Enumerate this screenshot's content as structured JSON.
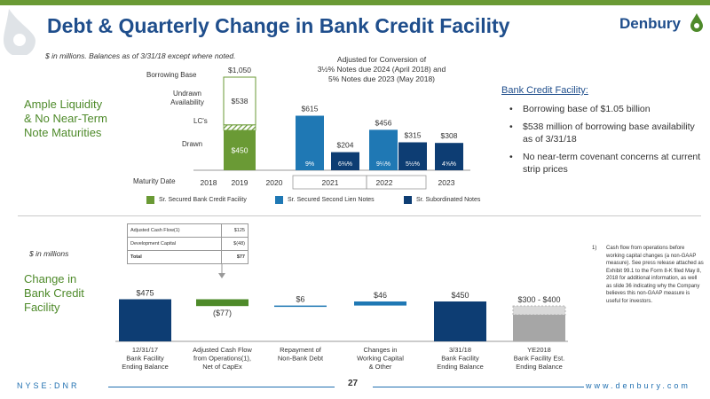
{
  "header": {
    "title": "Debt & Quarterly Change in Bank Credit Facility",
    "brand": "Denbury"
  },
  "top_section": {
    "note": "$ in millions.  Balances as of 3/31/18 except where noted.",
    "side_heading": [
      "Ample Liquidity",
      "& No Near-Term",
      "Note Maturities"
    ],
    "annotation": [
      "Adjusted for Conversion of",
      "3½% Notes due 2024 (April 2018) and",
      "5% Notes due 2023 (May 2018)"
    ],
    "row_labels": [
      "Borrowing Base",
      "Undrawn Availability",
      "LC's",
      "Drawn"
    ],
    "maturity_label": "Maturity Date",
    "bank_credit_facility": {
      "heading": "Bank Credit Facility:",
      "bullets": [
        "Borrowing base of $1.05 billion",
        "$538 million of borrowing base availability as of 3/31/18",
        "No near-term covenant concerns at current strip prices"
      ]
    },
    "legend": [
      {
        "label": "Sr. Secured Bank Credit Facility",
        "color": "#6a9a35"
      },
      {
        "label": "Sr. Secured Second Lien Notes",
        "color": "#1f78b4"
      },
      {
        "label": "Sr. Subordinated Notes",
        "color": "#0d3d73"
      }
    ]
  },
  "bottom_section": {
    "note": "$ in millions",
    "side_heading": [
      "Change in",
      "Bank Credit",
      "Facility"
    ],
    "table": [
      {
        "label": "Adjusted Cash Flow(1)",
        "value": "$125"
      },
      {
        "label": "Development Capital",
        "value": "$(48)"
      },
      {
        "label": "Total",
        "value": "$77"
      }
    ],
    "footnote_num": "1)",
    "footnote": "Cash flow from operations before working capital changes (a non-GAAP measure). See press release attached as Exhibit 99.1 to the Form 8-K filed May 8, 2018 for additional information, as well as slide 36 indicating why the Company believes this non-GAAP measure is useful for investors."
  },
  "footer": {
    "left": "NYSE:DNR",
    "page": "27",
    "right": "www.denbury.com"
  },
  "chart_data": [
    {
      "type": "bar",
      "stacked": true,
      "title": "",
      "x_axis_label": "Maturity Date",
      "years": [
        "2018",
        "2019",
        "2020",
        "2021",
        "2022",
        "2023"
      ],
      "groups": [
        {
          "label": "2021",
          "years_spanned": [
            "2021"
          ]
        },
        {
          "label": "2022",
          "years_spanned": [
            "2022"
          ]
        }
      ],
      "bank_credit_facility_2019": {
        "borrowing_base": 1050,
        "borrowing_base_label": "$1,050",
        "undrawn_availability": 538,
        "undrawn_label": "$538",
        "lcs": 62,
        "drawn": 450,
        "drawn_label": "$450"
      },
      "notes": [
        {
          "year": "2021",
          "series": "Sr. Secured Second Lien Notes",
          "value": 615,
          "label": "$615",
          "rate": "9%"
        },
        {
          "year": "2021",
          "series": "Sr. Subordinated Notes",
          "value": 204,
          "label": "$204",
          "rate": "6⅜%"
        },
        {
          "year": "2022",
          "series": "Sr. Secured Second Lien Notes",
          "value": 456,
          "label": "$456",
          "rate": "9¼%"
        },
        {
          "year": "2022",
          "series": "Sr. Subordinated Notes",
          "value": 315,
          "label": "$315",
          "rate": "5½%"
        },
        {
          "year": "2023",
          "series": "Sr. Subordinated Notes",
          "value": 308,
          "label": "$308",
          "rate": "4⅝%"
        }
      ]
    },
    {
      "type": "bar",
      "subtype": "waterfall",
      "title": "",
      "units": "$ in millions",
      "categories": [
        [
          "12/31/17",
          "Bank Facility",
          "Ending Balance"
        ],
        [
          "Adjusted Cash Flow",
          "from Operations(1),",
          "Net of CapEx"
        ],
        [
          "Repayment of",
          "Non-Bank Debt"
        ],
        [
          "Changes in",
          "Working Capital",
          "& Other"
        ],
        [
          "3/31/18",
          "Bank Facility",
          "Ending Balance"
        ],
        [
          "YE2018",
          "Bank Facility Est.",
          "Ending Balance"
        ]
      ],
      "steps": [
        {
          "kind": "total",
          "value": 475,
          "label": "$475",
          "color": "#0d3d73"
        },
        {
          "kind": "delta",
          "value": -77,
          "label": "($77)",
          "color": "#4e8a2a"
        },
        {
          "kind": "delta",
          "value": 6,
          "label": "$6",
          "color": "#1f78b4"
        },
        {
          "kind": "delta",
          "value": 46,
          "label": "$46",
          "color": "#1f78b4"
        },
        {
          "kind": "total",
          "value": 450,
          "label": "$450",
          "color": "#0d3d73"
        },
        {
          "kind": "range",
          "low": 300,
          "high": 400,
          "label": "$300 - $400",
          "color": "#a6a6a6"
        }
      ]
    }
  ]
}
